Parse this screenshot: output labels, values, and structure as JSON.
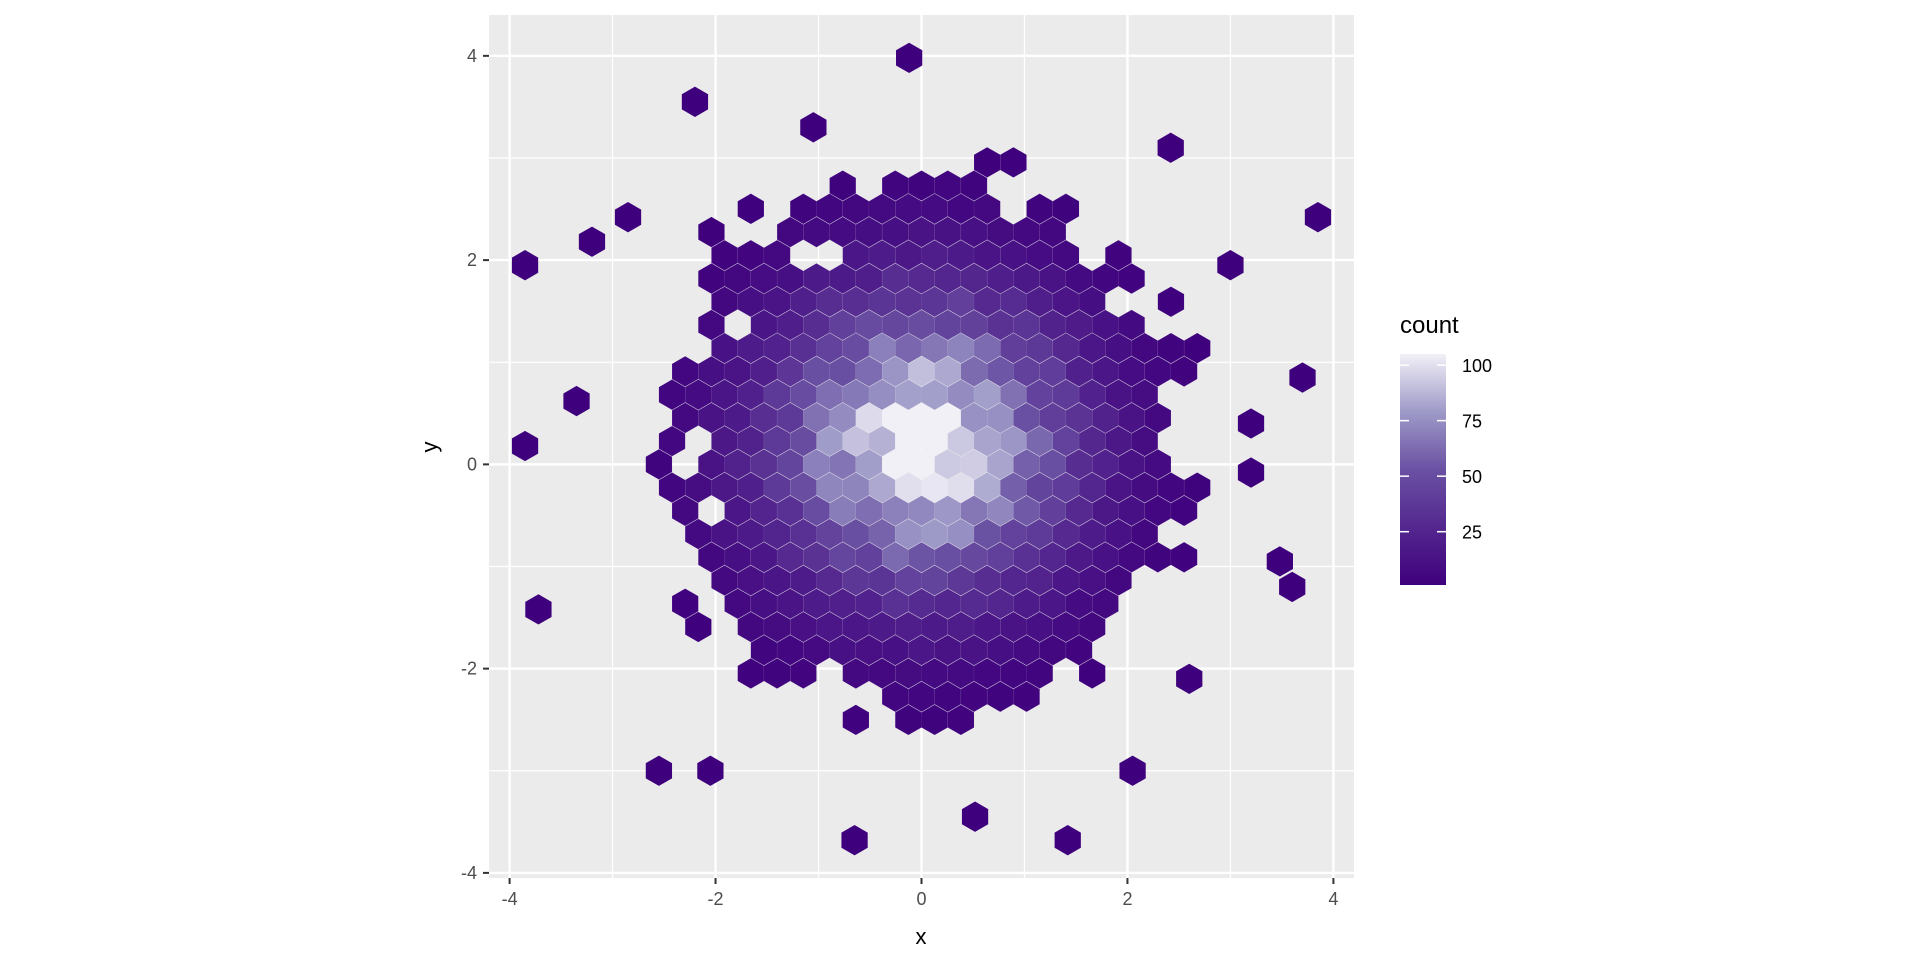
{
  "chart_data": {
    "type": "hexbin",
    "xlabel": "x",
    "ylabel": "y",
    "xlim": [
      -4.2,
      4.2
    ],
    "ylim": [
      -4.05,
      4.4
    ],
    "x_ticks": [
      -4,
      -2,
      0,
      2,
      4
    ],
    "y_ticks": [
      -4,
      -2,
      0,
      2,
      4
    ],
    "x_tick_labels": [
      "-4",
      "-2",
      "0",
      "2",
      "4"
    ],
    "y_tick_labels": [
      "-4",
      "-2",
      "0",
      "2",
      "4"
    ],
    "grid": true,
    "legend": {
      "title": "count",
      "placement": "right",
      "range": [
        1,
        105
      ],
      "breaks": [
        25,
        50,
        75,
        100
      ],
      "break_labels": [
        "25",
        "50",
        "75",
        "100"
      ],
      "color_low": "#3F007D",
      "color_high": "#FCFBFD"
    },
    "colors": {
      "panel_background": "#EBEBEB",
      "grid": "#FFFFFF"
    },
    "outlier_hexes": [
      {
        "x": -1.05,
        "y": 3.3,
        "count": 1
      },
      {
        "x": -2.2,
        "y": 3.55,
        "count": 1
      },
      {
        "x": -0.12,
        "y": 3.98,
        "count": 1
      },
      {
        "x": -3.2,
        "y": 2.18,
        "count": 1
      },
      {
        "x": -2.85,
        "y": 2.42,
        "count": 1
      },
      {
        "x": -3.85,
        "y": 1.95,
        "count": 1
      },
      {
        "x": -3.35,
        "y": 0.62,
        "count": 1
      },
      {
        "x": -3.85,
        "y": 0.18,
        "count": 1
      },
      {
        "x": -3.72,
        "y": -1.42,
        "count": 1
      },
      {
        "x": -2.55,
        "y": -3.0,
        "count": 1
      },
      {
        "x": -2.05,
        "y": -3.0,
        "count": 1
      },
      {
        "x": -0.65,
        "y": -3.68,
        "count": 1
      },
      {
        "x": 0.52,
        "y": -3.45,
        "count": 1
      },
      {
        "x": 1.42,
        "y": -3.68,
        "count": 1
      },
      {
        "x": 2.05,
        "y": -3.0,
        "count": 1
      },
      {
        "x": 2.6,
        "y": -2.1,
        "count": 1
      },
      {
        "x": 3.48,
        "y": -0.95,
        "count": 1
      },
      {
        "x": 3.6,
        "y": -1.2,
        "count": 1
      },
      {
        "x": 3.7,
        "y": 0.85,
        "count": 1
      },
      {
        "x": 3.85,
        "y": 2.42,
        "count": 1
      },
      {
        "x": 2.42,
        "y": 3.1,
        "count": 1
      },
      {
        "x": 3.0,
        "y": 1.95,
        "count": 1
      },
      {
        "x": 3.2,
        "y": 0.4,
        "count": 1
      },
      {
        "x": 3.2,
        "y": -0.08,
        "count": 1
      }
    ],
    "core_cluster": {
      "center": [
        0.0,
        0.2
      ],
      "peak_count": 105,
      "spread": 1.0,
      "x_range": [
        -3.0,
        3.0
      ],
      "y_range": [
        -3.3,
        3.1
      ]
    }
  }
}
